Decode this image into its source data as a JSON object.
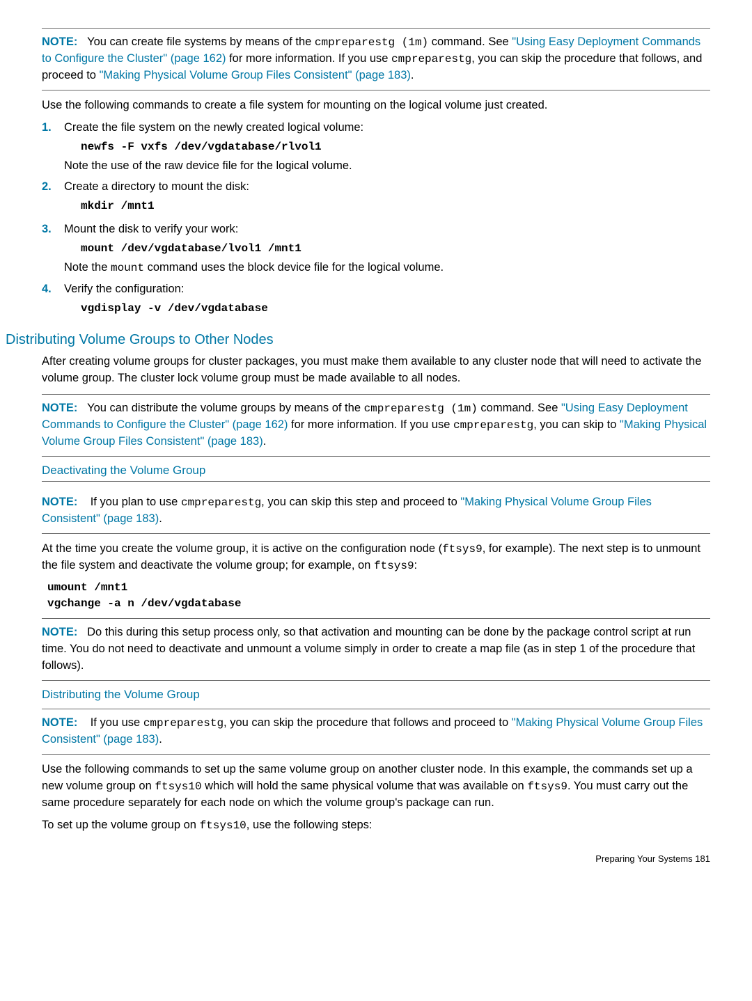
{
  "note1": {
    "label": "NOTE:",
    "text_a": "You can create file systems by means of the ",
    "cmd": "cmpreparestg (1m)",
    "text_b": " command. See ",
    "link1": "\"Using Easy Deployment Commands to Configure the Cluster\" (page 162)",
    "text_c": " for more information. If you use ",
    "cmd2": "cmpreparestg",
    "text_d": ", you can skip the procedure that follows, and proceed to ",
    "link2": "\"Making Physical Volume Group Files Consistent\" (page 183)",
    "text_e": "."
  },
  "intro1": "Use the following commands to create a file system for mounting on the logical volume just created.",
  "steps1": [
    {
      "n": "1.",
      "line": "Create the file system on the newly created logical volume:",
      "code": "newfs -F vxfs /dev/vgdatabase/rlvol1",
      "after": "Note the use of the raw device file for the logical volume."
    },
    {
      "n": "2.",
      "line": "Create a directory to mount the disk:",
      "code": "mkdir /mnt1",
      "after": ""
    },
    {
      "n": "3.",
      "line": "Mount the disk to verify your work:",
      "code": "mount /dev/vgdatabase/lvol1 /mnt1",
      "after_a": "Note the ",
      "after_code": "mount",
      "after_b": " command uses the block device file for the logical volume."
    },
    {
      "n": "4.",
      "line": "Verify the configuration:",
      "code": "vgdisplay -v /dev/vgdatabase",
      "after": ""
    }
  ],
  "h2_1": "Distributing Volume Groups to Other Nodes",
  "para2": "After creating volume groups for cluster packages, you must make them available to any cluster node that will need to activate the volume group. The cluster lock volume group must be made available to all nodes.",
  "note2": {
    "label": "NOTE:",
    "a": "You can distribute the volume groups by means of the ",
    "cmd": "cmpreparestg (1m)",
    "b": " command. See ",
    "link1": "\"Using Easy Deployment Commands to Configure the Cluster\" (page 162)",
    "c": " for more information. If you use ",
    "cmd2": "cmpreparestg",
    "d": ", you can skip to ",
    "link2": "\"Making Physical Volume Group Files Consistent\" (page 183)",
    "e": "."
  },
  "h3_1": "Deactivating the Volume Group",
  "note3": {
    "label": "NOTE:",
    "a": "If you plan to use ",
    "cmd": "cmpreparestg",
    "b": ", you can skip this step and proceed to ",
    "link": "\"Making Physical Volume Group Files Consistent\" (page 183)",
    "c": "."
  },
  "para3_a": "At the time you create the volume group, it is active on the configuration node (",
  "para3_code1": "ftsys9",
  "para3_b": ", for example). The next step is to unmount the file system and deactivate the volume group; for example, on ",
  "para3_code2": " ftsys9",
  "para3_c": ":",
  "codeblock1": "umount /mnt1\nvgchange -a n /dev/vgdatabase",
  "note4": {
    "label": "NOTE:",
    "text": "Do this during this setup process only, so that activation and mounting can be done by the package control script at run time. You do not need to deactivate and unmount a volume simply in order to create a map file (as in step 1 of the procedure that follows)."
  },
  "h3_2": "Distributing the Volume Group",
  "note5": {
    "label": "NOTE:",
    "a": "If you use ",
    "cmd": "cmpreparestg",
    "b": ", you can skip the procedure that follows and proceed to ",
    "link": "\"Making Physical Volume Group Files Consistent\" (page 183)",
    "c": "."
  },
  "para5_a": "Use the following commands to set up the same volume group on another cluster node. In this example, the commands set up a new volume group on ",
  "para5_c1": "ftsys10",
  "para5_b": " which will hold the same physical volume that was available on ",
  "para5_c2": "ftsys9",
  "para5_c": ". You must carry out the same procedure separately for each node on which the volume group's package can run.",
  "para6_a": "To set up the volume group on ",
  "para6_c": "ftsys10",
  "para6_b": ", use the following steps:",
  "footer": "Preparing Your Systems    181"
}
